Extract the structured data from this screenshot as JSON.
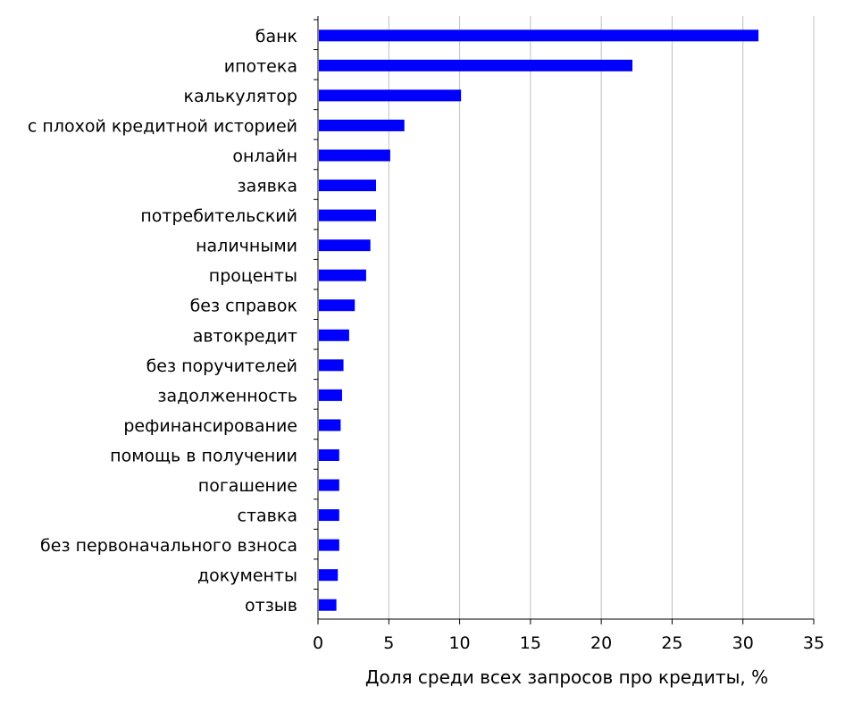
{
  "chart_data": {
    "type": "bar",
    "orientation": "horizontal",
    "categories": [
      "банк",
      "ипотека",
      "калькулятор",
      "с плохой кредитной историей",
      "онлайн",
      "заявка",
      "потребительский",
      "наличными",
      "проценты",
      "без справок",
      "автокредит",
      "без поручителей",
      "задолженность",
      "рефинансирование",
      "помощь в получении",
      "погашение",
      "ставка",
      "без первоначального взноса",
      "документы",
      "отзыв"
    ],
    "values": [
      31.1,
      22.2,
      10.1,
      6.1,
      5.1,
      4.1,
      4.1,
      3.7,
      3.4,
      2.6,
      2.2,
      1.8,
      1.7,
      1.6,
      1.5,
      1.5,
      1.5,
      1.5,
      1.4,
      1.3
    ],
    "xlabel": "Доля среди всех запросов про кредиты, %",
    "ylabel": "",
    "title": "",
    "xlim": [
      0,
      35
    ],
    "xticks": [
      "0",
      "5",
      "10",
      "15",
      "20",
      "25",
      "30",
      "35"
    ],
    "grid": "vertical",
    "legend": "none",
    "bar_color": "#0000ff",
    "grid_color": "#bfbfbf",
    "axis_color": "#000000"
  }
}
